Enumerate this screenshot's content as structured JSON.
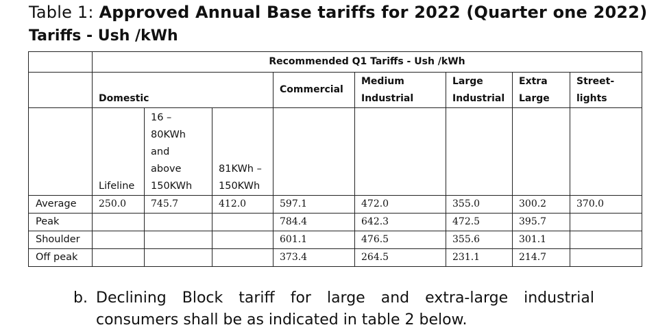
{
  "caption": {
    "label": "Table 1:",
    "title": "Approved Annual Base tariffs for 2022 (Quarter one 2022)",
    "subtitle": "Tariffs - Ush /kWh"
  },
  "table": {
    "group_header": "Recommended Q1 Tariffs - Ush /kWh",
    "categories": {
      "domestic": "Domestic",
      "commercial": "Commercial",
      "medium_industrial": [
        "Medium",
        "Industrial"
      ],
      "large_industrial": [
        "Large",
        "Industrial"
      ],
      "extra_large": [
        "Extra",
        "Large"
      ],
      "street_lights": [
        "Street-",
        "lights"
      ]
    },
    "domestic_bands": {
      "lifeline": "Lifeline",
      "band_16_80": [
        "16 –",
        "80KWh",
        "and",
        "above",
        "150KWh"
      ],
      "band_81_150": [
        "81KWh –",
        "150KWh"
      ]
    },
    "rows": [
      {
        "label": "Average",
        "lifeline": "250.0",
        "band2": "745.7",
        "band3": "412.0",
        "commercial": "597.1",
        "medium": "472.0",
        "large": "355.0",
        "extra": "300.2",
        "street": "370.0"
      },
      {
        "label": "Peak",
        "lifeline": "",
        "band2": "",
        "band3": "",
        "commercial": "784.4",
        "medium": "642.3",
        "large": "472.5",
        "extra": "395.7",
        "street": ""
      },
      {
        "label": "Shoulder",
        "lifeline": "",
        "band2": "",
        "band3": "",
        "commercial": "601.1",
        "medium": "476.5",
        "large": "355.6",
        "extra": "301.1",
        "street": ""
      },
      {
        "label": "Off peak",
        "lifeline": "",
        "band2": "",
        "band3": "",
        "commercial": "373.4",
        "medium": "264.5",
        "large": "231.1",
        "extra": "214.7",
        "street": ""
      }
    ]
  },
  "paragraph": {
    "marker": "b.",
    "line1_words": [
      "Declining",
      "Block",
      "tariff",
      "for",
      "large",
      "and",
      "extra-large",
      "industrial"
    ],
    "line2": "consumers shall be as indicated in table 2 below."
  }
}
